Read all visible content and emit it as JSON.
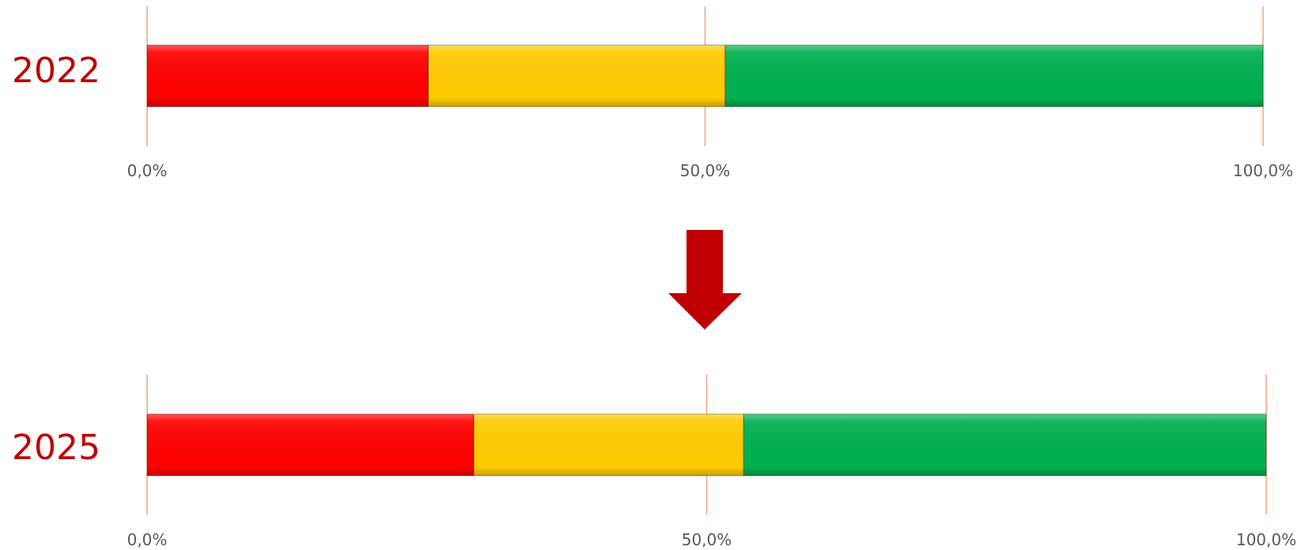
{
  "chart_data": [
    {
      "type": "bar",
      "orientation": "horizontal",
      "stacked": true,
      "category_label": "2022",
      "series": [
        {
          "color": "#ff0000",
          "value": 25.2
        },
        {
          "color": "#ffcc00",
          "value": 26.6
        },
        {
          "color": "#00b050",
          "value": 48.2
        }
      ],
      "xlim": [
        0,
        100
      ],
      "ticks": [
        "0,0%",
        "50,0%",
        "100,0%"
      ],
      "tick_values": [
        0,
        50,
        100
      ],
      "grid": true
    },
    {
      "type": "bar",
      "orientation": "horizontal",
      "stacked": true,
      "category_label": "2025",
      "series": [
        {
          "color": "#ff0000",
          "value": 29.2
        },
        {
          "color": "#ffcc00",
          "value": 24.1
        },
        {
          "color": "#00b050",
          "value": 46.7
        }
      ],
      "xlim": [
        0,
        100
      ],
      "ticks": [
        "0,0%",
        "50,0%",
        "100,0%"
      ],
      "tick_values": [
        0,
        50,
        100
      ],
      "grid": true
    }
  ],
  "colors": {
    "year_label": "#c00000",
    "arrow": "#c00000",
    "gridline": "#f4a57a",
    "tick_label": "#595959"
  },
  "arrow_icon": "down-arrow-icon"
}
